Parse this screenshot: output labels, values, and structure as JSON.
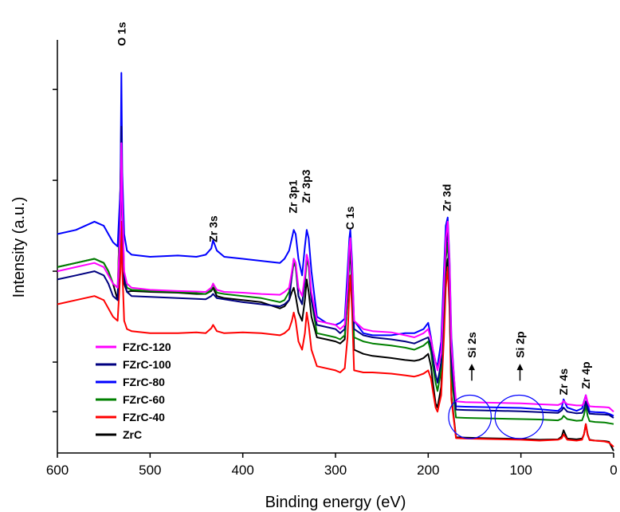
{
  "chart_data": {
    "type": "line",
    "title": "",
    "xlabel": "Binding energy (eV)",
    "ylabel": "Intensity (a.u.)",
    "xlim": [
      600,
      0
    ],
    "ylim": [
      0,
      100
    ],
    "x_ticks": [
      "600",
      "500",
      "400",
      "300",
      "200",
      "100",
      "0"
    ],
    "x_tick_values": [
      600,
      500,
      400,
      300,
      200,
      100,
      0
    ],
    "y_tick_values": [
      10,
      22,
      44,
      66,
      88
    ],
    "y_tick_labels_shown": false,
    "grid": false,
    "legend_position": "bottom-left",
    "peak_labels": [
      {
        "text": "O 1s",
        "x": 531,
        "y": 98.5
      },
      {
        "text": "Zr 3s",
        "x": 432,
        "y": 51
      },
      {
        "text": "Zr 3p1",
        "x": 346,
        "y": 58
      },
      {
        "text": "Zr 3p3",
        "x": 332,
        "y": 60.5
      },
      {
        "text": "C 1s",
        "x": 284.5,
        "y": 54
      },
      {
        "text": "Zr 3d",
        "x": 180,
        "y": 58.5
      },
      {
        "text": "Zr 4s",
        "x": 54,
        "y": 14
      },
      {
        "text": "Zr 4p",
        "x": 30,
        "y": 15.5
      }
    ],
    "annotations": [
      {
        "text": "Si 2s",
        "x": 153,
        "y": 23,
        "arrow": true,
        "ellipse_x": [
          178,
          132
        ],
        "ellipse_y": [
          3.5,
          14
        ]
      },
      {
        "text": "Si 2p",
        "x": 101,
        "y": 23,
        "arrow": true,
        "ellipse_x": [
          128,
          76
        ],
        "ellipse_y": [
          3.5,
          14
        ]
      }
    ],
    "x": [
      600,
      580,
      560,
      550,
      545,
      540,
      535,
      532,
      531,
      530,
      528,
      525,
      520,
      500,
      470,
      450,
      440,
      434,
      432,
      428,
      420,
      400,
      380,
      360,
      355,
      350,
      347,
      345,
      343,
      340,
      336,
      333,
      331,
      329,
      326,
      320,
      310,
      300,
      295,
      290,
      287,
      285,
      284,
      282,
      280,
      270,
      260,
      240,
      225,
      215,
      210,
      205,
      200,
      197,
      195,
      192,
      190,
      186,
      183,
      181,
      179,
      177,
      175,
      170,
      160,
      140,
      120,
      100,
      80,
      60,
      56,
      54,
      50,
      40,
      34,
      32,
      30,
      28,
      26,
      20,
      10,
      5,
      0
    ],
    "series": [
      {
        "name": "FZrC-120",
        "color": "#ff00ff",
        "values": [
          44,
          45,
          46,
          45,
          43,
          41,
          40,
          55,
          75,
          62,
          44,
          41,
          40,
          39.5,
          39.2,
          39.1,
          39,
          40,
          41,
          39.5,
          39,
          38.8,
          38.5,
          38.3,
          39,
          40,
          44,
          47,
          46,
          40,
          38,
          43,
          48,
          46,
          39,
          32,
          31.5,
          31,
          30,
          31,
          40,
          50,
          52,
          44,
          32,
          30,
          29.5,
          29.2,
          28.5,
          28,
          28.5,
          29,
          30,
          27.5,
          25,
          22,
          20,
          24,
          40,
          52,
          56,
          46,
          26,
          12.5,
          12.3,
          12.2,
          12.1,
          12,
          11.8,
          11.6,
          12,
          12.6,
          11.8,
          11.5,
          11.5,
          12.2,
          14,
          12.3,
          11.3,
          11.2,
          11.1,
          11,
          10
        ]
      },
      {
        "name": "FZrC-100",
        "color": "#000080",
        "values": [
          42,
          43,
          44,
          43,
          41,
          38,
          37,
          55,
          79,
          60,
          42,
          39,
          38,
          37.8,
          37.5,
          37.3,
          37.2,
          38,
          38.5,
          37.5,
          37.2,
          36.5,
          36,
          35.5,
          36,
          37,
          43,
          47,
          46,
          38,
          36,
          42,
          48,
          46,
          37,
          31,
          30.5,
          30,
          29,
          30,
          39,
          49,
          51,
          42,
          30,
          28.5,
          28,
          27.5,
          27,
          26.5,
          27,
          27.5,
          28,
          26,
          23,
          19,
          17,
          22,
          38,
          50,
          54,
          43,
          22,
          10.5,
          10.4,
          10.3,
          10.2,
          10.1,
          9.9,
          9.7,
          10.3,
          11,
          10,
          9.6,
          9.7,
          10.6,
          12.5,
          10.7,
          9.5,
          9.4,
          9.3,
          9.2,
          8.5
        ]
      },
      {
        "name": "FZrC-80",
        "color": "#0000ff",
        "values": [
          53,
          54,
          56,
          55,
          53,
          51,
          50,
          64,
          92,
          68,
          53,
          49,
          48,
          47.5,
          47.8,
          47.5,
          48,
          49.5,
          51.5,
          49,
          47.5,
          47,
          46.5,
          46,
          47,
          49,
          52,
          54,
          53,
          47,
          43,
          50,
          54,
          52,
          44,
          33,
          31.5,
          31,
          31.5,
          32.5,
          44,
          52,
          54,
          46,
          32,
          29,
          28.5,
          28.5,
          29,
          29,
          29.5,
          30,
          31.5,
          28,
          25,
          22,
          21,
          27,
          44,
          55,
          57,
          47,
          28,
          11.3,
          11.2,
          11.1,
          11,
          10.9,
          10.6,
          10.2,
          11,
          13,
          11,
          10.2,
          10.8,
          12.5,
          14,
          12,
          10,
          9.9,
          9.8,
          9.5,
          9
        ]
      },
      {
        "name": "FZrC-60",
        "color": "#008000",
        "values": [
          45,
          46,
          47,
          46,
          44,
          41,
          40,
          60,
          85,
          62,
          43,
          40,
          39.5,
          39.2,
          39,
          38.7,
          38.5,
          39.5,
          41,
          38.8,
          38.5,
          38,
          37.5,
          36.5,
          37,
          39,
          43,
          46,
          45,
          38,
          36,
          41,
          47,
          45,
          37,
          29,
          28.5,
          28,
          27.5,
          28.5,
          37,
          47,
          50,
          41,
          28,
          27,
          26.5,
          26,
          25.5,
          25,
          25.5,
          26,
          27,
          24.5,
          21,
          17,
          15,
          20,
          36,
          47,
          51,
          41,
          19,
          8.6,
          8.5,
          8.4,
          8.3,
          8.2,
          8.1,
          7.9,
          8.3,
          9,
          8.2,
          7.8,
          7.9,
          9.2,
          11.5,
          9,
          7.7,
          7.5,
          7.4,
          7.2,
          7
        ]
      },
      {
        "name": "FZrC-40",
        "color": "#ff0000",
        "values": [
          36,
          37,
          38,
          37,
          35,
          33,
          32,
          44,
          56,
          45,
          32,
          30,
          29.5,
          29,
          29,
          29.2,
          29,
          30.2,
          31,
          29.5,
          29,
          29.2,
          29,
          28.5,
          29,
          30,
          32,
          34,
          32,
          27,
          25,
          29,
          34,
          31,
          25,
          21,
          20.5,
          20,
          19.5,
          20.5,
          28,
          39,
          43,
          34,
          20,
          19.5,
          19.5,
          19.2,
          18.8,
          18.5,
          18.8,
          19.2,
          20,
          18,
          15,
          11,
          10,
          14,
          28,
          40,
          45,
          35,
          13,
          3.6,
          3.5,
          3.4,
          3.3,
          3.2,
          3,
          3.2,
          3.6,
          4.5,
          3.2,
          3,
          3.2,
          4.5,
          7,
          4.3,
          3.1,
          3,
          2.8,
          2.5,
          1.5
        ]
      },
      {
        "name": "ZrC",
        "color": "#000000",
        "values": [
          45,
          46,
          47,
          46,
          44,
          41,
          37,
          65,
          78,
          60,
          41,
          39,
          39.2,
          39,
          38.8,
          38.5,
          38.5,
          39.2,
          40,
          38,
          37.5,
          37,
          36.5,
          35,
          35.5,
          37,
          39,
          40,
          38,
          34,
          32,
          37,
          42,
          39,
          33,
          28,
          27.5,
          27,
          26.5,
          27.5,
          38,
          47,
          48,
          40,
          25,
          24,
          23.5,
          23,
          22.5,
          22.3,
          22.5,
          23,
          24,
          21,
          17,
          12,
          11,
          16,
          34,
          44,
          47,
          37,
          14,
          3.8,
          3.7,
          3.6,
          3.5,
          3.4,
          3.2,
          3.3,
          4,
          5.5,
          3.5,
          3.3,
          3.5,
          4.5,
          7,
          4.5,
          3.2,
          3,
          2.9,
          2.7,
          0.5
        ]
      }
    ]
  }
}
